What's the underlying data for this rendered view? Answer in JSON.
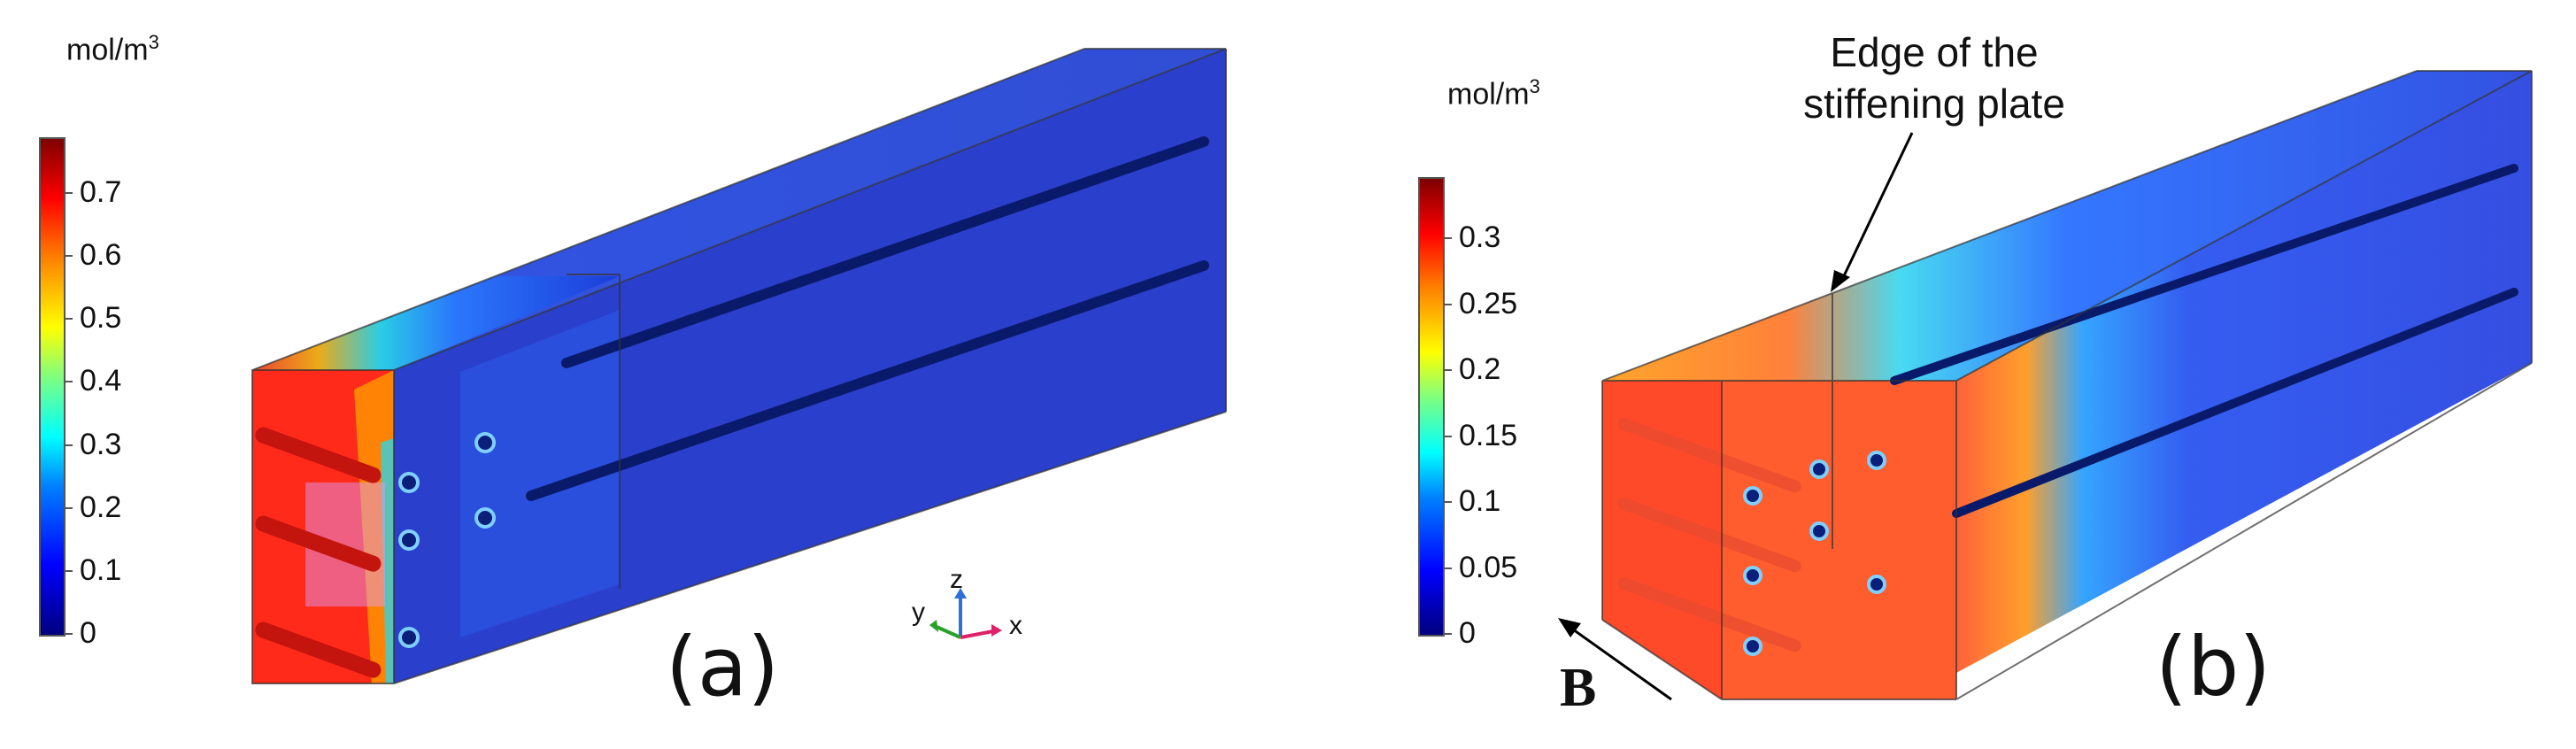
{
  "panel_a": {
    "unit_label": "mol/m",
    "unit_exponent": "3",
    "colorbar_ticks": [
      "0.7",
      "0.6",
      "0.5",
      "0.4",
      "0.3",
      "0.2",
      "0.1",
      "0"
    ],
    "axis_labels": {
      "x": "x",
      "y": "y",
      "z": "z"
    },
    "panel_label": "(a)"
  },
  "panel_b": {
    "unit_label": "mol/m",
    "unit_exponent": "3",
    "colorbar_ticks": [
      "0.3",
      "0.25",
      "0.2",
      "0.15",
      "0.1",
      "0.05",
      "0"
    ],
    "annotation_line1": "Edge of the",
    "annotation_line2": "stiffening plate",
    "b_label": "B",
    "panel_label": "(b)"
  },
  "colors": {
    "colormap": [
      "#00007f",
      "#0000ff",
      "#00ffff",
      "#ffff00",
      "#ff0000",
      "#7f0000"
    ],
    "x_axis": "#e0206a",
    "y_axis": "#2aa02a",
    "z_axis": "#2f6fd8"
  }
}
